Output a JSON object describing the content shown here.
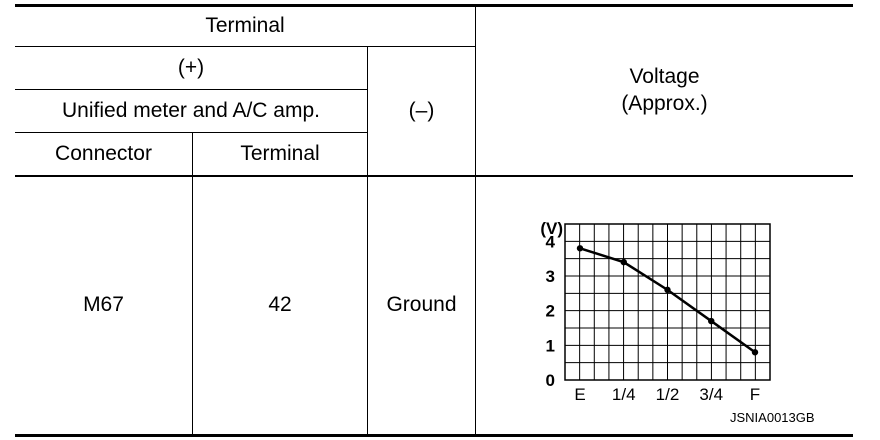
{
  "table": {
    "header": {
      "terminal_group": "Terminal",
      "plus": "(+)",
      "unit": "Unified meter and A/C amp.",
      "minus": "(–)",
      "connector": "Connector",
      "terminal": "Terminal",
      "voltage_line1": "Voltage",
      "voltage_line2": "(Approx.)"
    },
    "row": {
      "connector": "M67",
      "terminal": "42",
      "minus": "Ground"
    }
  },
  "chart_data": {
    "type": "line",
    "ylabel": "(V)",
    "ylim": [
      0,
      4.5
    ],
    "yticks": [
      "0",
      "1",
      "2",
      "3",
      "4"
    ],
    "categories": [
      "E",
      "1/4",
      "1/2",
      "3/4",
      "F"
    ],
    "values": [
      3.8,
      3.4,
      2.6,
      1.7,
      0.8
    ],
    "grid": true
  },
  "figure_id": "JSNIA0013GB"
}
